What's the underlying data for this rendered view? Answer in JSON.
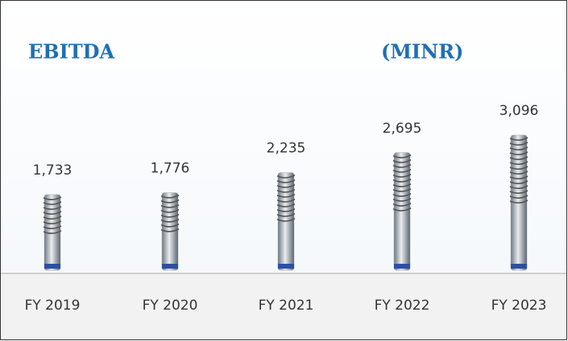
{
  "chart_data": {
    "type": "bar",
    "title": "EBITDA",
    "subtitle": "(MINR)",
    "categories": [
      "FY 2019",
      "FY 2020",
      "FY 2021",
      "FY 2022",
      "FY 2023"
    ],
    "values": [
      1733,
      1776,
      2235,
      2695,
      3096
    ],
    "value_labels": [
      "1,733",
      "1,776",
      "2,235",
      "2,695",
      "3,096"
    ],
    "color": "#9aa3ad"
  }
}
